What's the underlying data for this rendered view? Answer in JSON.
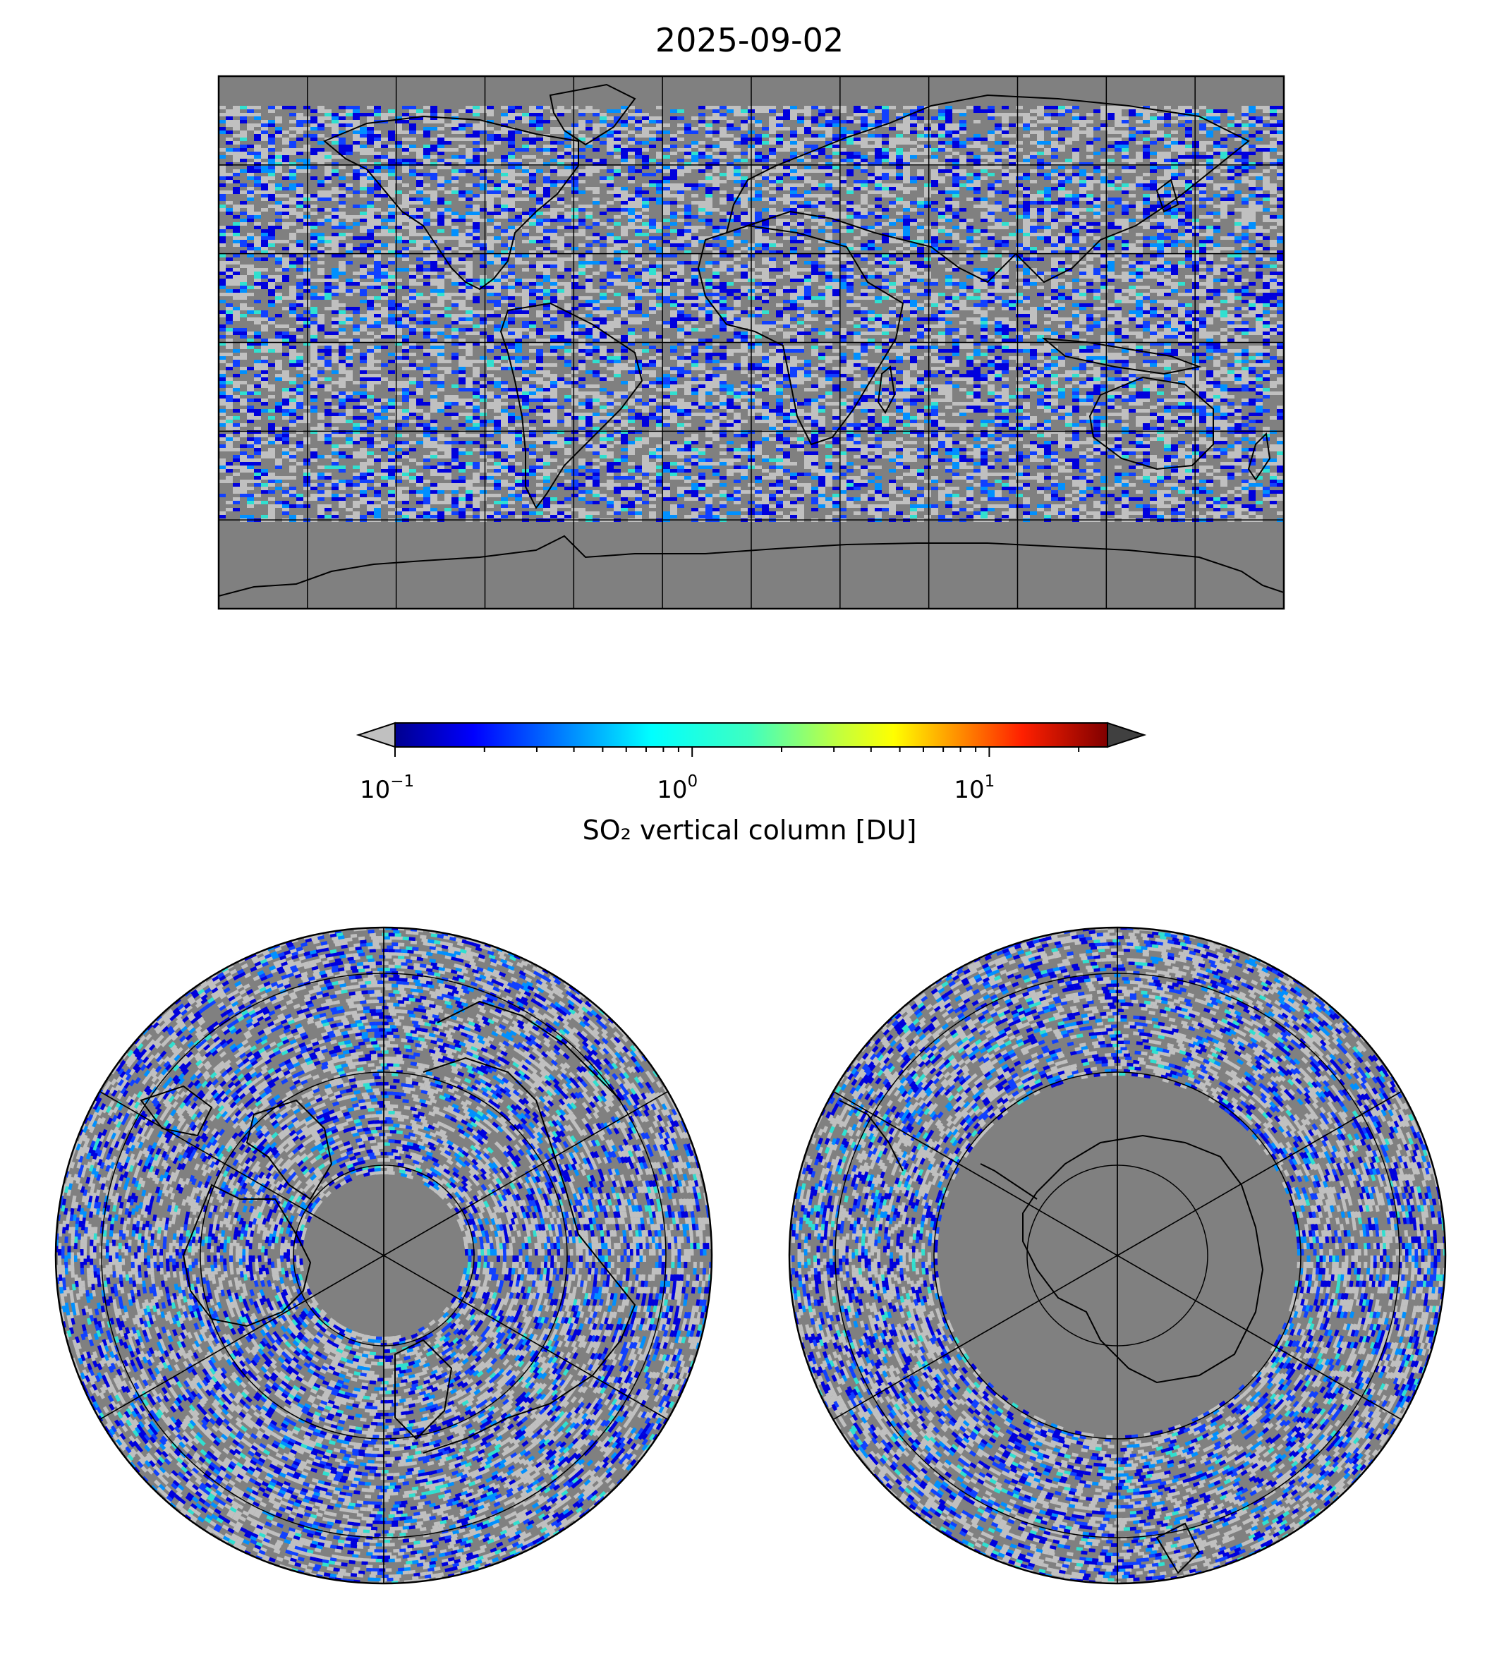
{
  "title": "2025-09-02",
  "colorbar": {
    "label": "SO₂ vertical column [DU]",
    "scale": "log",
    "colormap": "jet",
    "range": [
      0.1,
      25
    ],
    "extend": "both",
    "under_color": "#c0c0c0",
    "over_color": "#404040",
    "ticks": [
      {
        "value": 0.1,
        "base": "10",
        "exp": "−1"
      },
      {
        "value": 1,
        "base": "10",
        "exp": "0"
      },
      {
        "value": 10,
        "base": "10",
        "exp": "1"
      }
    ]
  },
  "colors": {
    "missing": "#808080",
    "grid": "#000000",
    "coastline": "#000000"
  },
  "maps": [
    {
      "projection": "equirectangular",
      "extent": "global"
    },
    {
      "projection": "north-polar-stereographic",
      "hemisphere": "north"
    },
    {
      "projection": "south-polar-stereographic",
      "hemisphere": "south"
    }
  ]
}
